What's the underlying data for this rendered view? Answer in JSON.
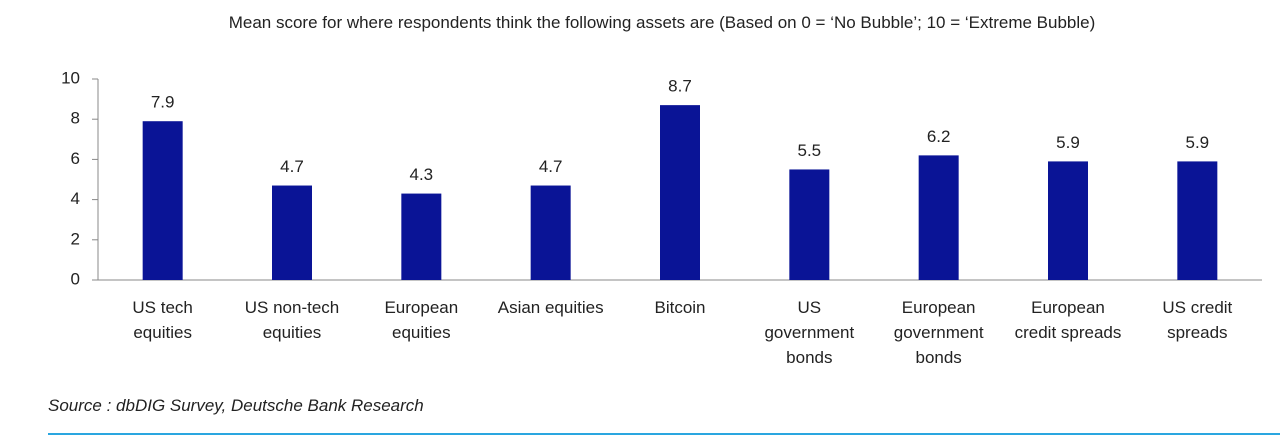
{
  "chart_data": {
    "type": "bar",
    "title": "Mean score for where respondents think the following assets are (Based on 0 = ‘No Bubble’; 10 = ‘Extreme Bubble)",
    "categories": [
      "US tech\nequities",
      "US non-tech\nequities",
      "European\nequities",
      "Asian equities",
      "Bitcoin",
      "US\ngovernment\nbonds",
      "European\ngovernment\nbonds",
      "European\ncredit spreads",
      "US credit\nspreads"
    ],
    "values": [
      7.9,
      4.7,
      4.3,
      4.7,
      8.7,
      5.5,
      6.2,
      5.9,
      5.9
    ],
    "color": "#0a1496",
    "ylim": [
      0,
      10
    ],
    "yticks": [
      0,
      2,
      4,
      6,
      8,
      10
    ],
    "source": "Source : dbDIG Survey, Deutsche Bank Research"
  }
}
